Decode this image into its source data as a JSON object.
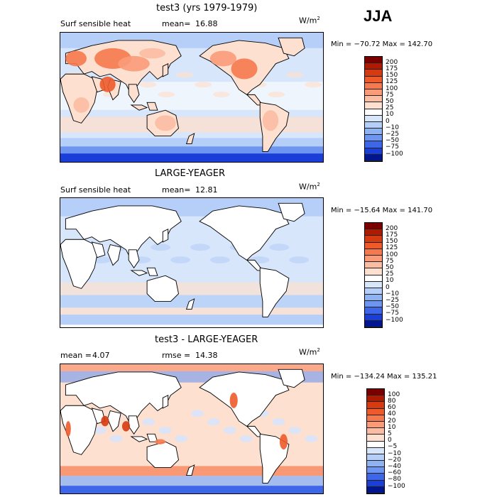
{
  "season": "JJA",
  "panels": [
    {
      "title": "test3 (yrs 1979-1979)",
      "variable": "Surf sensible heat",
      "stat1_label": "mean=",
      "stat1_value": "16.88",
      "stat2_label": "",
      "stat2_value": "",
      "unit": "W/m",
      "unit_exp": "2",
      "minmax": "Min = −70.72  Max = 142.70",
      "colorbar": [
        "200",
        "175",
        "150",
        "125",
        "100",
        "75",
        "50",
        "25",
        "10",
        "0",
        "−10",
        "−25",
        "−50",
        "−75",
        "−100"
      ],
      "colors": [
        "#7a0000",
        "#b01a00",
        "#d63a10",
        "#ee5a2a",
        "#f6794d",
        "#f99b78",
        "#fbbca2",
        "#fde0cf",
        "#ffffff",
        "#d8e6fb",
        "#b6cff9",
        "#8eb3f5",
        "#6e96f0",
        "#3d66e8",
        "#1a3fd8",
        "#00158e"
      ]
    },
    {
      "title": "LARGE-YEAGER",
      "variable": "Surf sensible heat",
      "stat1_label": "mean=",
      "stat1_value": "12.81",
      "stat2_label": "",
      "stat2_value": "",
      "unit": "W/m",
      "unit_exp": "2",
      "minmax": "Min = −15.64  Max = 141.70",
      "colorbar": [
        "200",
        "175",
        "150",
        "125",
        "100",
        "75",
        "50",
        "25",
        "10",
        "0",
        "−10",
        "−25",
        "−50",
        "−75",
        "−100"
      ],
      "colors": [
        "#7a0000",
        "#b01a00",
        "#d63a10",
        "#ee5a2a",
        "#f6794d",
        "#f99b78",
        "#fbbca2",
        "#fde0cf",
        "#ffffff",
        "#d8e6fb",
        "#b6cff9",
        "#8eb3f5",
        "#6e96f0",
        "#3d66e8",
        "#1a3fd8",
        "#00158e"
      ]
    },
    {
      "title": "test3 - LARGE-YEAGER",
      "variable": "",
      "stat1_label": "mean =",
      "stat1_value": "4.07",
      "stat2_label": "rmse =",
      "stat2_value": "14.38",
      "unit": "W/m",
      "unit_exp": "2",
      "minmax": "Min = −134.24  Max = 135.21",
      "colorbar": [
        "100",
        "80",
        "60",
        "40",
        "20",
        "10",
        "5",
        "0",
        "−5",
        "−10",
        "−20",
        "−40",
        "−60",
        "−80",
        "−100"
      ],
      "colors": [
        "#7a0000",
        "#b01a00",
        "#d63a10",
        "#ee5a2a",
        "#f6794d",
        "#f99b78",
        "#fbbca2",
        "#fde0cf",
        "#ffffff",
        "#d8e6fb",
        "#b6cff9",
        "#8eb3f5",
        "#6e96f0",
        "#3d66e8",
        "#1a3fd8",
        "#00158e"
      ]
    }
  ]
}
